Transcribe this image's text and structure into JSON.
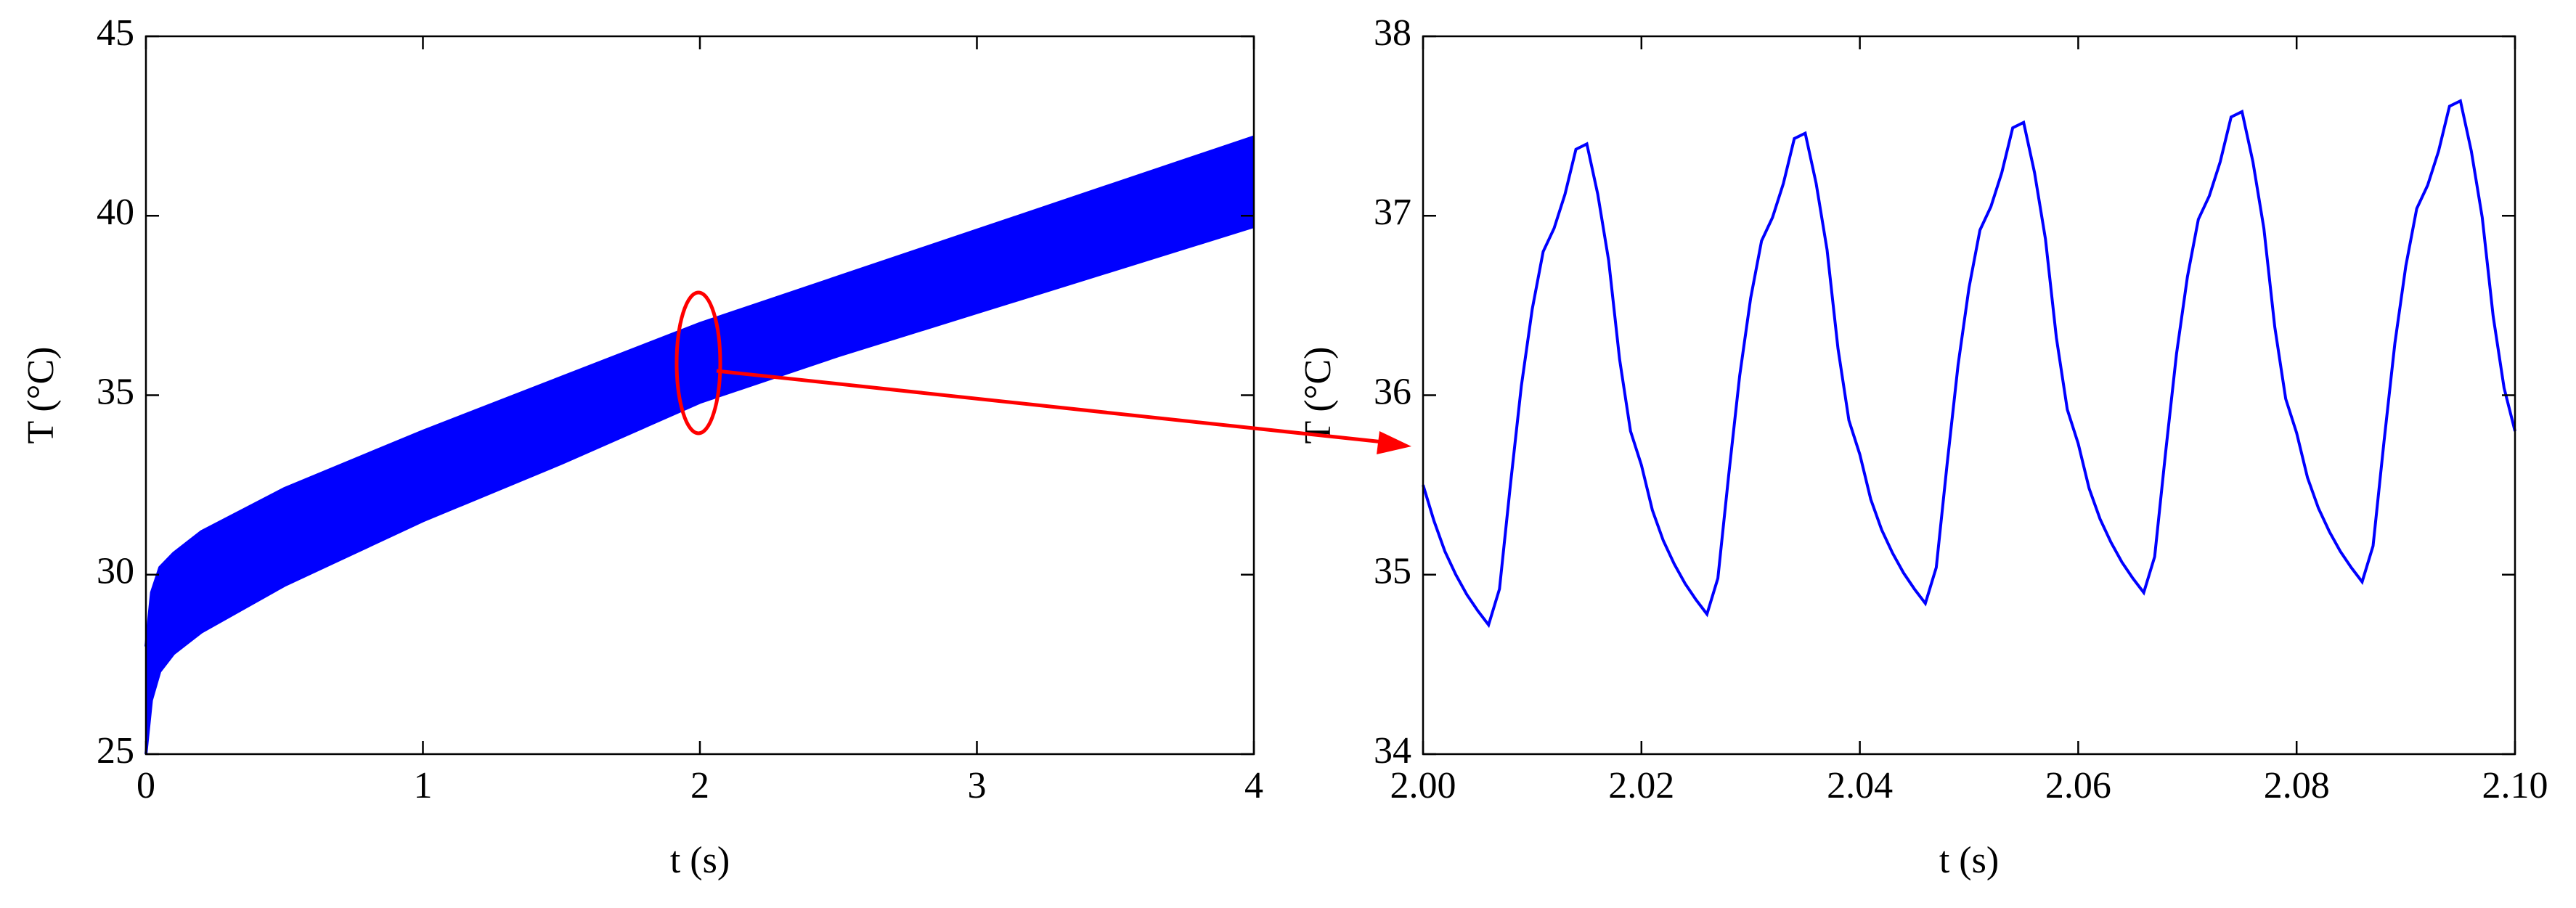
{
  "chart_data": [
    {
      "type": "band",
      "xlabel": "t (s)",
      "ylabel": "T (°C)",
      "color": "#0000ff",
      "x": [
        0,
        0.02,
        0.05,
        0.1,
        0.2,
        0.5,
        1,
        1.5,
        2,
        2.5,
        3,
        3.5,
        4
      ],
      "upper": [
        28,
        29.5,
        30.2,
        30.6,
        31.2,
        32.4,
        34,
        35.5,
        37,
        38.3,
        39.6,
        40.9,
        42.2
      ],
      "lower": [
        25,
        26.5,
        27.3,
        27.8,
        28.4,
        29.7,
        31.5,
        33.1,
        34.8,
        36.1,
        37.3,
        38.5,
        39.7
      ],
      "xlim": [
        0,
        4
      ],
      "xticks": [
        0,
        1,
        2,
        3,
        4
      ],
      "ylim": [
        25,
        45
      ],
      "yticks": [
        25,
        30,
        35,
        40,
        45
      ]
    },
    {
      "type": "line",
      "xlabel": "t (s)",
      "ylabel": "T (°C)",
      "color": "#0000ff",
      "x": [
        2,
        2.001,
        2.002,
        2.003,
        2.004,
        2.005,
        2.006,
        2.007,
        2.008,
        2.009,
        2.01,
        2.011,
        2.012,
        2.013,
        2.014,
        2.015,
        2.016,
        2.017,
        2.018,
        2.019,
        2.02,
        2.021,
        2.022,
        2.023,
        2.024,
        2.025,
        2.026,
        2.027,
        2.028,
        2.029,
        2.03,
        2.031,
        2.032,
        2.033,
        2.034,
        2.035,
        2.036,
        2.037,
        2.038,
        2.039,
        2.04,
        2.041,
        2.042,
        2.043,
        2.044,
        2.045,
        2.046,
        2.047,
        2.048,
        2.049,
        2.05,
        2.051,
        2.052,
        2.053,
        2.054,
        2.055,
        2.056,
        2.057,
        2.058,
        2.059,
        2.06,
        2.061,
        2.062,
        2.063,
        2.064,
        2.065,
        2.066,
        2.067,
        2.068,
        2.069,
        2.07,
        2.071,
        2.072,
        2.073,
        2.074,
        2.075,
        2.076,
        2.077,
        2.078,
        2.079,
        2.08,
        2.081,
        2.082,
        2.083,
        2.084,
        2.085,
        2.086,
        2.087,
        2.088,
        2.089,
        2.09,
        2.091,
        2.092,
        2.093,
        2.094,
        2.095,
        2.096,
        2.097,
        2.098,
        2.099,
        2.1
      ],
      "values": [
        35.5,
        35.3,
        35.13,
        35.0,
        34.89,
        34.8,
        34.72,
        34.92,
        35.5,
        36.05,
        36.48,
        36.8,
        36.93,
        37.12,
        37.37,
        37.4,
        37.12,
        36.75,
        36.2,
        35.8,
        35.61,
        35.36,
        35.19,
        35.06,
        34.95,
        34.86,
        34.78,
        34.98,
        35.56,
        36.11,
        36.54,
        36.86,
        36.99,
        37.18,
        37.43,
        37.46,
        37.18,
        36.81,
        36.26,
        35.86,
        35.67,
        35.42,
        35.25,
        35.12,
        35.01,
        34.92,
        34.84,
        35.04,
        35.62,
        36.17,
        36.6,
        36.92,
        37.05,
        37.24,
        37.49,
        37.52,
        37.24,
        36.87,
        36.32,
        35.92,
        35.73,
        35.48,
        35.31,
        35.18,
        35.07,
        34.98,
        34.9,
        35.1,
        35.68,
        36.23,
        36.66,
        36.98,
        37.11,
        37.3,
        37.55,
        37.58,
        37.3,
        36.93,
        36.38,
        35.98,
        35.79,
        35.54,
        35.37,
        35.24,
        35.13,
        35.04,
        34.96,
        35.16,
        35.74,
        36.29,
        36.72,
        37.04,
        37.17,
        37.36,
        37.61,
        37.64,
        37.36,
        36.99,
        36.44,
        36.04,
        35.8
      ],
      "xlim": [
        2,
        2.1
      ],
      "xticks": [
        {
          "value": 2,
          "label": "2.00"
        },
        {
          "value": 2.02,
          "label": "2.02"
        },
        {
          "value": 2.04,
          "label": "2.04"
        },
        {
          "value": 2.06,
          "label": "2.06"
        },
        {
          "value": 2.08,
          "label": "2.08"
        },
        {
          "value": 2.1,
          "label": "2.10"
        }
      ],
      "ylim": [
        34,
        38
      ],
      "yticks": [
        34,
        35,
        36,
        37,
        38
      ]
    }
  ]
}
